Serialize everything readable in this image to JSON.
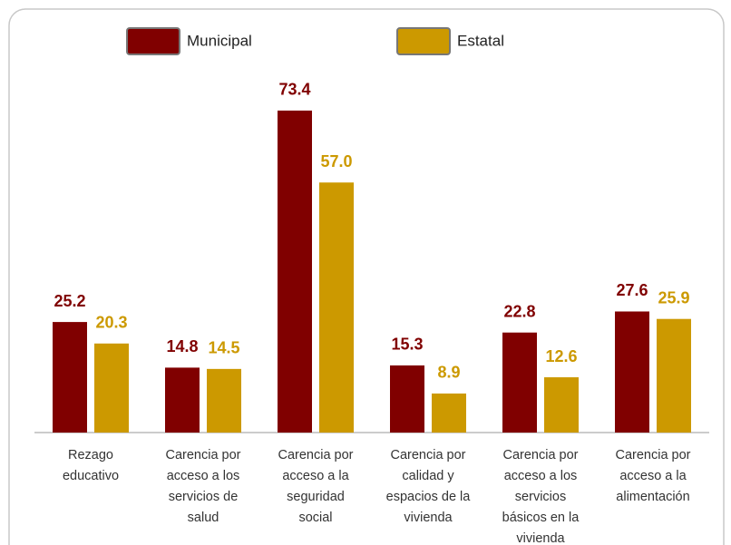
{
  "chart_data": {
    "type": "bar",
    "categories": [
      "Rezago educativo",
      "Carencia por acceso a los servicios de salud",
      "Carencia por acceso a la seguridad social",
      "Carencia por calidad y espacios de la vivienda",
      "Carencia por acceso a los servicios básicos en la vivienda",
      "Carencia por acceso a la alimentación"
    ],
    "series": [
      {
        "name": "Municipal",
        "color": "#800000",
        "values": [
          25.2,
          14.8,
          73.4,
          15.3,
          22.8,
          27.6
        ]
      },
      {
        "name": "Estatal",
        "color": "#cc9900",
        "values": [
          20.3,
          14.5,
          57,
          8.9,
          12.6,
          25.9
        ],
        "value_labels": [
          "20.3",
          "14.5",
          "57.0",
          "8.9",
          "12.6",
          "25.9"
        ]
      }
    ],
    "ylim": [
      0,
      80
    ],
    "legend": "top"
  }
}
